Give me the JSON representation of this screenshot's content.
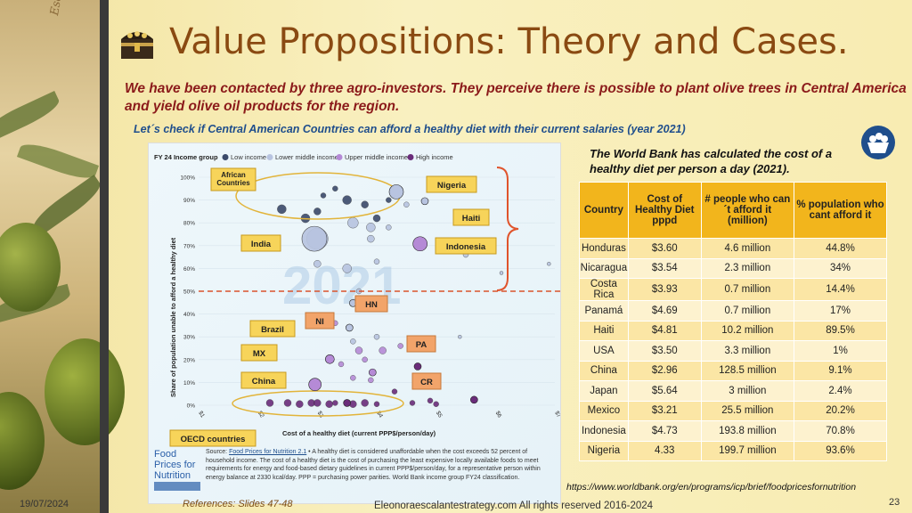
{
  "title": "Value Propositions: Theory and Cases.",
  "subtitle_intro": "We have been contacted by three agro-investors. They perceive there is possible to plant olive trees in Central America and yield olive oil products for the region.",
  "subtitle_question": "Let´s check if Central American Countries can afford a healthy diet with their current salaries (year 2021)",
  "side_signature": "Escalante",
  "wb_note": "The World Bank has calculated the cost of a healthy diet per person a day (2021).",
  "table": {
    "headers": [
      "Country",
      "Cost of Healthy Diet pppd",
      "# people who can´t afford it (million)",
      "% population who cant afford it"
    ],
    "rows": [
      [
        "Honduras",
        "$3.60",
        "4.6 million",
        "44.8%"
      ],
      [
        "Nicaragua",
        "$3.54",
        "2.3 million",
        "34%"
      ],
      [
        "Costa Rica",
        "$3.93",
        "0.7 million",
        "14.4%"
      ],
      [
        "Panamá",
        "$4.69",
        "0.7 million",
        "17%"
      ],
      [
        "Haiti",
        "$4.81",
        "10.2 million",
        "89.5%"
      ],
      [
        "USA",
        "$3.50",
        "3.3 million",
        "1%"
      ],
      [
        "China",
        "$2.96",
        "128.5 million",
        "9.1%"
      ],
      [
        "Japan",
        "$5.64",
        "3 million",
        "2.4%"
      ],
      [
        "Mexico",
        "$3.21",
        "25.5 million",
        "20.2%"
      ],
      [
        "Indonesia",
        "$4.73",
        "193.8 million",
        "70.8%"
      ],
      [
        "Nigeria",
        "4.33",
        "199.7 million",
        "93.6%"
      ]
    ]
  },
  "chart": {
    "legend_title": "FY 24 Income group",
    "legend": [
      {
        "name": "Low income",
        "color": "#3b4a6b"
      },
      {
        "name": "Lower middle income",
        "color": "#b8c4e0"
      },
      {
        "name": "Upper middle income",
        "color": "#b58ad6"
      },
      {
        "name": "High income",
        "color": "#6a2c7a"
      }
    ],
    "y_label": "Share of population unable to afford a healthy diet",
    "x_label": "Cost of a healthy diet (current PPP$/person/day)",
    "y_ticks": [
      "100%",
      "90%",
      "80%",
      "70%",
      "60%",
      "50%",
      "40%",
      "30%",
      "20%",
      "10%",
      "0%"
    ],
    "x_ticks": [
      "$1",
      "$2",
      "$3",
      "$4",
      "$5",
      "$6",
      "$7"
    ],
    "watermark": "2021",
    "source_logo_lines": [
      "Food",
      "Prices for",
      "Nutrition"
    ],
    "source_prefix": "Source: ",
    "source_link": "Food Prices for Nutrition 2.1",
    "source_text": " • A healthy diet is considered unaffordable when the cost exceeds 52 percent of household income. The cost of a healthy diet is the cost of purchasing the least expensive locally available foods to meet requirements for energy and food-based dietary guidelines in current PPP$/person/day, for a representative person within energy balance at 2330 kcal/day. PPP = purchasing power parities. World Bank income group FY24 classification.",
    "labels": {
      "african": "African Countries",
      "nigeria": "Nigeria",
      "haiti": "Haiti",
      "india": "India",
      "indonesia": "Indonesia",
      "hn": "HN",
      "ni": "NI",
      "brazil": "Brazil",
      "mx": "MX",
      "pa": "PA",
      "china": "China",
      "cr": "CR",
      "oecd": "OECD countries"
    }
  },
  "chart_data": {
    "type": "scatter",
    "x": [
      2.96,
      3.21,
      3.54,
      3.6,
      3.93,
      4.33,
      4.69,
      4.73,
      4.81,
      3.5,
      5.64
    ],
    "y": [
      9.1,
      20.2,
      34,
      44.8,
      14.4,
      93.6,
      17,
      70.8,
      89.5,
      1,
      2.4
    ],
    "points": [
      {
        "label": "China",
        "x": 2.96,
        "y": 9.1
      },
      {
        "label": "Mexico",
        "x": 3.21,
        "y": 20.2
      },
      {
        "label": "Nicaragua",
        "x": 3.54,
        "y": 34
      },
      {
        "label": "Honduras",
        "x": 3.6,
        "y": 44.8
      },
      {
        "label": "Costa Rica",
        "x": 3.93,
        "y": 14.4
      },
      {
        "label": "Nigeria",
        "x": 4.33,
        "y": 93.6
      },
      {
        "label": "Panamá",
        "x": 4.69,
        "y": 17
      },
      {
        "label": "Indonesia",
        "x": 4.73,
        "y": 70.8
      },
      {
        "label": "Haiti",
        "x": 4.81,
        "y": 89.5
      },
      {
        "label": "USA",
        "x": 3.5,
        "y": 1
      },
      {
        "label": "Japan",
        "x": 5.64,
        "y": 2.4
      }
    ],
    "xlim": [
      1,
      7
    ],
    "ylim": [
      0,
      100
    ],
    "threshold_y": 50,
    "xlabel": "Cost of a healthy diet (current PPP$/person/day)",
    "ylabel": "Share of population unable to afford a healthy diet"
  },
  "url": "https://www.worldbank.org/en/programs/icp/brief/foodpricesfornutrition",
  "date": "19/07/2024",
  "references": "References: Slides 47-48",
  "footer": "Eleonoraescalantestrategy.com  All rights reserved 2016-2024",
  "page_number": "23"
}
